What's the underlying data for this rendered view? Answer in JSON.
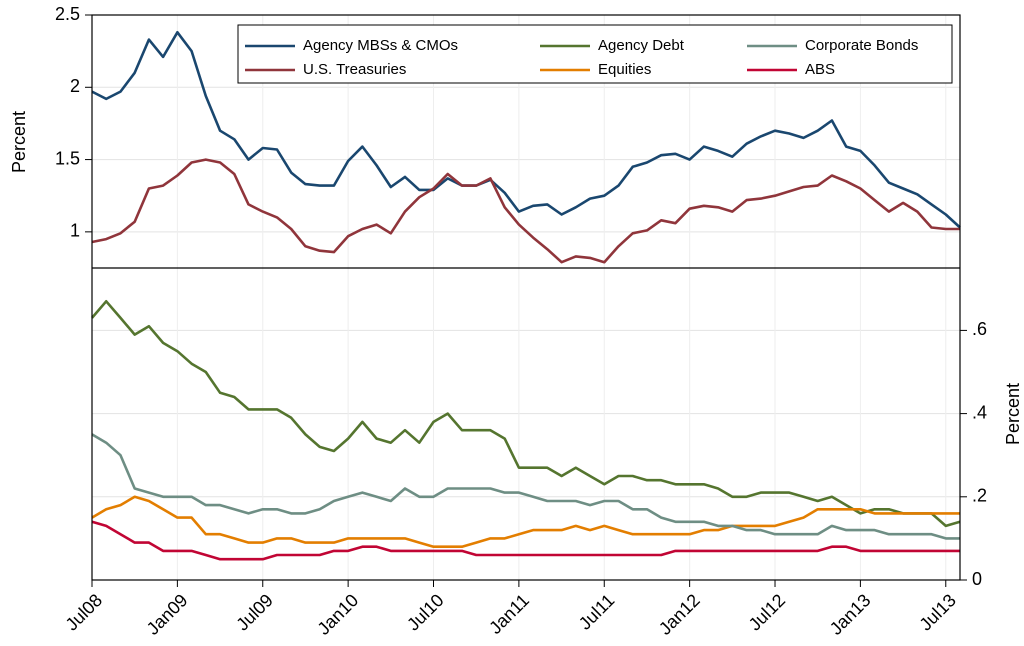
{
  "chart_data": [
    {
      "type": "line",
      "ylabel": "Percent",
      "ylim": [
        0.75,
        2.5
      ],
      "yticks": [
        1,
        1.5,
        2,
        2.5
      ],
      "grid": true,
      "legend_position": "top-right",
      "series": [
        {
          "name": "Agency MBSs & CMOs",
          "color": "#1a476f",
          "values": [
            1.97,
            1.92,
            1.97,
            2.1,
            2.33,
            2.21,
            2.38,
            2.25,
            1.94,
            1.7,
            1.64,
            1.5,
            1.58,
            1.57,
            1.41,
            1.33,
            1.32,
            1.32,
            1.49,
            1.59,
            1.46,
            1.31,
            1.38,
            1.29,
            1.29,
            1.37,
            1.32,
            1.32,
            1.36,
            1.27,
            1.14,
            1.18,
            1.19,
            1.12,
            1.17,
            1.23,
            1.25,
            1.32,
            1.45,
            1.48,
            1.53,
            1.54,
            1.5,
            1.59,
            1.56,
            1.52,
            1.61,
            1.66,
            1.7,
            1.68,
            1.65,
            1.7,
            1.77,
            1.59,
            1.56,
            1.46,
            1.34,
            1.3,
            1.26,
            1.19,
            1.12,
            1.03
          ]
        },
        {
          "name": "U.S. Treasuries",
          "color": "#90353b",
          "values": [
            0.93,
            0.95,
            0.99,
            1.07,
            1.3,
            1.32,
            1.39,
            1.48,
            1.5,
            1.48,
            1.4,
            1.19,
            1.14,
            1.1,
            1.02,
            0.9,
            0.87,
            0.86,
            0.97,
            1.02,
            1.05,
            0.99,
            1.14,
            1.24,
            1.3,
            1.4,
            1.32,
            1.32,
            1.37,
            1.17,
            1.05,
            0.96,
            0.88,
            0.79,
            0.83,
            0.82,
            0.79,
            0.9,
            0.99,
            1.01,
            1.08,
            1.06,
            1.16,
            1.18,
            1.17,
            1.14,
            1.22,
            1.23,
            1.25,
            1.28,
            1.31,
            1.32,
            1.39,
            1.35,
            1.3,
            1.22,
            1.14,
            1.2,
            1.14,
            1.03,
            1.02,
            1.02
          ]
        }
      ]
    },
    {
      "type": "line",
      "y2label": "Percent",
      "y2lim": [
        0,
        0.75
      ],
      "y2ticks": [
        0,
        {
          "value": 0.2,
          "label": ".2"
        },
        {
          "value": 0.4,
          "label": ".4"
        },
        {
          "value": 0.6,
          "label": ".6"
        }
      ],
      "grid": true,
      "categories": [
        "Jul08",
        null,
        null,
        null,
        null,
        null,
        "Jan09",
        null,
        null,
        null,
        null,
        null,
        "Jul09",
        null,
        null,
        null,
        null,
        null,
        "Jan10",
        null,
        null,
        null,
        null,
        null,
        "Jul10",
        null,
        null,
        null,
        null,
        null,
        "Jan11",
        null,
        null,
        null,
        null,
        null,
        "Jul11",
        null,
        null,
        null,
        null,
        null,
        "Jan12",
        null,
        null,
        null,
        null,
        null,
        "Jul12",
        null,
        null,
        null,
        null,
        null,
        "Jan13",
        null,
        null,
        null,
        null,
        null,
        "Jul13",
        null
      ],
      "series": [
        {
          "name": "Agency Debt",
          "color": "#55752f",
          "axis": "y2",
          "values": [
            0.63,
            0.67,
            0.63,
            0.59,
            0.61,
            0.57,
            0.55,
            0.52,
            0.5,
            0.45,
            0.44,
            0.41,
            0.41,
            0.41,
            0.39,
            0.35,
            0.32,
            0.31,
            0.34,
            0.38,
            0.34,
            0.33,
            0.36,
            0.33,
            0.38,
            0.4,
            0.36,
            0.36,
            0.36,
            0.34,
            0.27,
            0.27,
            0.27,
            0.25,
            0.27,
            0.25,
            0.23,
            0.25,
            0.25,
            0.24,
            0.24,
            0.23,
            0.23,
            0.23,
            0.22,
            0.2,
            0.2,
            0.21,
            0.21,
            0.21,
            0.2,
            0.19,
            0.2,
            0.18,
            0.16,
            0.17,
            0.17,
            0.16,
            0.16,
            0.16,
            0.13,
            0.14
          ]
        },
        {
          "name": "Equities",
          "color": "#e37e00",
          "axis": "y2",
          "values": [
            0.15,
            0.17,
            0.18,
            0.2,
            0.19,
            0.17,
            0.15,
            0.15,
            0.11,
            0.11,
            0.1,
            0.09,
            0.09,
            0.1,
            0.1,
            0.09,
            0.09,
            0.09,
            0.1,
            0.1,
            0.1,
            0.1,
            0.1,
            0.09,
            0.08,
            0.08,
            0.08,
            0.09,
            0.1,
            0.1,
            0.11,
            0.12,
            0.12,
            0.12,
            0.13,
            0.12,
            0.13,
            0.12,
            0.11,
            0.11,
            0.11,
            0.11,
            0.11,
            0.12,
            0.12,
            0.13,
            0.13,
            0.13,
            0.13,
            0.14,
            0.15,
            0.17,
            0.17,
            0.17,
            0.17,
            0.16,
            0.16,
            0.16,
            0.16,
            0.16,
            0.16,
            0.16
          ]
        },
        {
          "name": "Corporate Bonds",
          "color": "#6e8e84",
          "axis": "y2",
          "values": [
            0.35,
            0.33,
            0.3,
            0.22,
            0.21,
            0.2,
            0.2,
            0.2,
            0.18,
            0.18,
            0.17,
            0.16,
            0.17,
            0.17,
            0.16,
            0.16,
            0.17,
            0.19,
            0.2,
            0.21,
            0.2,
            0.19,
            0.22,
            0.2,
            0.2,
            0.22,
            0.22,
            0.22,
            0.22,
            0.21,
            0.21,
            0.2,
            0.19,
            0.19,
            0.19,
            0.18,
            0.19,
            0.19,
            0.17,
            0.17,
            0.15,
            0.14,
            0.14,
            0.14,
            0.13,
            0.13,
            0.12,
            0.12,
            0.11,
            0.11,
            0.11,
            0.11,
            0.13,
            0.12,
            0.12,
            0.12,
            0.11,
            0.11,
            0.11,
            0.11,
            0.1,
            0.1
          ]
        },
        {
          "name": "ABS",
          "color": "#c10534",
          "axis": "y2",
          "values": [
            0.14,
            0.13,
            0.11,
            0.09,
            0.09,
            0.07,
            0.07,
            0.07,
            0.06,
            0.05,
            0.05,
            0.05,
            0.05,
            0.06,
            0.06,
            0.06,
            0.06,
            0.07,
            0.07,
            0.08,
            0.08,
            0.07,
            0.07,
            0.07,
            0.07,
            0.07,
            0.07,
            0.06,
            0.06,
            0.06,
            0.06,
            0.06,
            0.06,
            0.06,
            0.06,
            0.06,
            0.06,
            0.06,
            0.06,
            0.06,
            0.06,
            0.07,
            0.07,
            0.07,
            0.07,
            0.07,
            0.07,
            0.07,
            0.07,
            0.07,
            0.07,
            0.07,
            0.08,
            0.08,
            0.07,
            0.07,
            0.07,
            0.07,
            0.07,
            0.07,
            0.07,
            0.07
          ]
        }
      ]
    }
  ]
}
